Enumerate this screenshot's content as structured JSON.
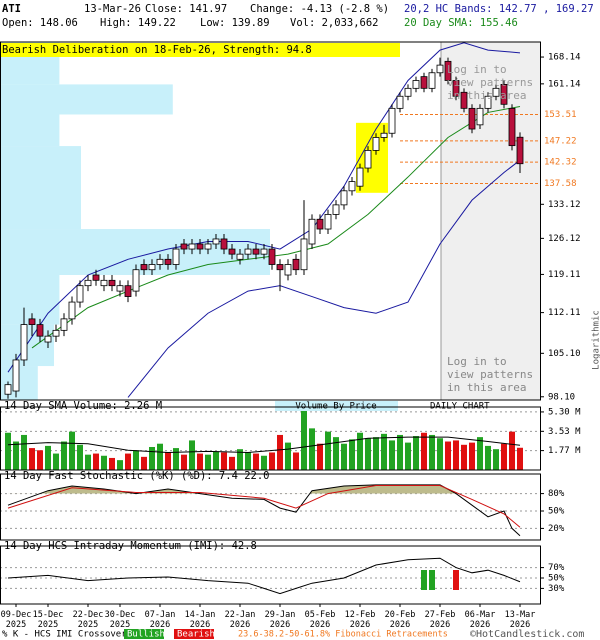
{
  "header": {
    "symbol": "ATI",
    "date": "13-Mar-26",
    "close": "Close: 141.97",
    "change": "Change: -4.13 (-2.8 %)",
    "open": "Open: 148.06",
    "high": "High: 149.22",
    "low": "Low: 139.89",
    "volume": "Vol: 2,033,662",
    "bands": "20,2 HC Bands: 142.77 , 169.27",
    "sma": "20 Day SMA: 155.46",
    "pattern": "Bearish Deliberation on 18-Feb-26, Strength: 94.8",
    "notice": [
      "Log in to",
      "view patterns",
      "in this area"
    ],
    "scale": "Logarithmic",
    "vbp_label": "Volume By Price",
    "chart_kind": "DAILY CHART"
  },
  "footer": {
    "crossover": "% K - HCS IMI Crossover,",
    "bullish": "Bullish",
    "bearish": "Bearish",
    "fib": "23.6-38.2-50-61.8% Fibonacci Retracements",
    "site": "©HotCandlestick.com"
  },
  "chart_data": [
    {
      "type": "candlestick",
      "log_scale": true,
      "ylim": [
        97.6,
        172.2
      ],
      "yticks": [
        {
          "value": 98.1,
          "label": "98.10"
        },
        {
          "value": 105.1,
          "label": "105.10"
        },
        112.11,
        {
          "value": 119.11,
          "label": "119.11"
        },
        126.12,
        {
          "value": 133.12,
          "label": "133.12"
        },
        161.14,
        168.14
      ],
      "fib_levels": [
        153.51,
        147.22,
        142.32,
        137.58
      ],
      "fib_color": "#f07820",
      "up_color": "#ffffff",
      "down_color": "#b8103c",
      "highlight": [
        44,
        47
      ],
      "open": [
        98.5,
        99,
        104,
        111,
        110,
        107,
        108,
        109,
        111,
        114,
        117,
        119,
        117,
        118,
        116,
        117,
        116,
        121,
        120,
        121,
        122,
        121,
        125,
        124,
        125,
        124,
        125,
        126,
        124,
        122,
        123,
        124,
        123,
        124,
        121,
        119,
        122,
        120,
        125,
        130,
        128,
        131,
        133,
        136,
        137,
        141,
        145,
        148,
        149,
        155,
        158,
        160,
        163,
        160,
        164,
        167,
        162,
        159,
        155,
        151,
        155,
        158,
        161,
        155,
        148.06
      ],
      "high": [
        100.5,
        105,
        113,
        112,
        111,
        109,
        110,
        112,
        115,
        118,
        119,
        120,
        119,
        119,
        118,
        118,
        121,
        122,
        122,
        123,
        123,
        125,
        126,
        126,
        126,
        126,
        127,
        127,
        125,
        124,
        125,
        125,
        125,
        125,
        122,
        122,
        123,
        134,
        131,
        131,
        132,
        134,
        137,
        139,
        142,
        146,
        149,
        151,
        156,
        159,
        161,
        163,
        164,
        165,
        168,
        168,
        163,
        160,
        156,
        156,
        159,
        161,
        162,
        156,
        149.22
      ],
      "low": [
        97.8,
        98,
        103,
        108,
        107,
        106,
        107,
        108,
        110,
        113,
        116,
        117,
        116,
        116,
        115,
        114,
        115,
        119,
        119,
        120,
        120,
        120,
        123,
        123,
        123,
        123,
        124,
        123,
        122,
        121,
        122,
        122,
        122,
        120,
        116,
        118,
        119,
        119,
        124,
        127,
        127,
        130,
        132,
        135,
        136,
        140,
        144,
        147,
        148,
        154,
        157,
        159,
        159,
        159,
        163,
        161,
        157,
        154,
        149,
        150,
        154,
        157,
        155,
        145,
        139.89
      ],
      "close": [
        100,
        104,
        110,
        110,
        108,
        108,
        109,
        111,
        114,
        117,
        118,
        118,
        118,
        117,
        117,
        115,
        120,
        120,
        121,
        122,
        121,
        124,
        124,
        125,
        124,
        125,
        126,
        124,
        123,
        123,
        124,
        123,
        124,
        121,
        120,
        121,
        120,
        126,
        130,
        128,
        131,
        133,
        136,
        138,
        141,
        145,
        148,
        149,
        155,
        158,
        160,
        162,
        160,
        164,
        166,
        162,
        158,
        155,
        150,
        155,
        158,
        160,
        156,
        146.1,
        141.97
      ],
      "volume_by_price": {
        "bins": [
          97.6,
          103,
          110,
          119,
          128,
          146,
          153.5,
          161,
          172.2
        ],
        "values": [
          7,
          10,
          11,
          50,
          15,
          11,
          32,
          11
        ],
        "xlim": [
          0,
          100
        ],
        "color": "#c8f0fa"
      },
      "series": [
        {
          "name": "upper",
          "color": "#1a1aa0",
          "x": [
            0,
            5,
            10,
            15,
            20,
            25,
            30,
            34,
            38,
            42,
            46,
            50,
            54,
            57,
            60,
            64
          ],
          "values": [
            102,
            112,
            119,
            122,
            124,
            125.5,
            125.5,
            124,
            128,
            137,
            150,
            162,
            170,
            172,
            170,
            169.27
          ]
        },
        {
          "name": "lower",
          "color": "#1a1aa0",
          "x": [
            15,
            20,
            25,
            30,
            34,
            38,
            42,
            46,
            50,
            54,
            58,
            62,
            64
          ],
          "values": [
            98,
            106,
            112,
            116,
            117,
            115,
            113,
            112,
            114,
            125,
            134,
            140,
            142.77
          ]
        },
        {
          "name": "sma",
          "color": "#1a8a1a",
          "x": [
            3,
            10,
            15,
            20,
            25,
            30,
            35,
            40,
            45,
            50,
            55,
            60,
            64
          ],
          "values": [
            106,
            113,
            116,
            119,
            121,
            122,
            123,
            125,
            131,
            139,
            148,
            154,
            155.46
          ]
        }
      ]
    },
    {
      "type": "bar",
      "title": "14 Day SMA Volume: 2.26 M",
      "ylim": [
        0,
        5.75
      ],
      "yticks": [
        {
          "value": 1.77,
          "label": "1.77 M"
        },
        {
          "value": 3.53,
          "label": "3.53 M"
        },
        {
          "value": 5.3,
          "label": "5.30 M"
        }
      ],
      "up_color": "#22a322",
      "down_color": "#e01010",
      "values": [
        3.4,
        2.6,
        3.2,
        2.0,
        1.8,
        2.2,
        1.5,
        2.6,
        3.5,
        2.3,
        1.4,
        1.5,
        1.3,
        1.1,
        0.9,
        1.5,
        1.8,
        1.2,
        2.1,
        2.4,
        1.6,
        2.0,
        1.4,
        2.7,
        1.5,
        1.4,
        1.7,
        1.6,
        1.2,
        1.9,
        1.6,
        1.5,
        1.3,
        1.6,
        3.2,
        2.5,
        1.6,
        5.7,
        3.8,
        2.4,
        3.5,
        3.0,
        2.4,
        2.8,
        3.4,
        2.9,
        3.0,
        3.3,
        2.7,
        3.2,
        2.5,
        3.1,
        3.4,
        3.2,
        2.9,
        2.6,
        2.7,
        2.3,
        2.5,
        3.0,
        2.2,
        1.9,
        2.4,
        3.5,
        2.03
      ],
      "sma": {
        "x": [
          0,
          5,
          10,
          15,
          20,
          25,
          30,
          35,
          40,
          45,
          50,
          55,
          60,
          64
        ],
        "values": [
          2.3,
          2.5,
          2.4,
          1.8,
          1.6,
          1.7,
          1.6,
          1.9,
          2.4,
          2.9,
          3.0,
          3.0,
          2.6,
          2.26
        ],
        "color": "#000000"
      }
    },
    {
      "type": "line",
      "title": "14 Day Fast Stochastic (%K) (%D): 7.4   22.0",
      "ylim": [
        0,
        100
      ],
      "fill_above": 80,
      "fill_color": "#bdbb8c",
      "yticks": [
        {
          "value": 20,
          "label": "20%"
        },
        {
          "value": 50,
          "label": "50%"
        },
        {
          "value": 80,
          "label": "80%"
        }
      ],
      "series": [
        {
          "name": "%K",
          "color": "#000000",
          "x": [
            0,
            5,
            8,
            12,
            16,
            20,
            24,
            28,
            32,
            34,
            36,
            38,
            42,
            46,
            50,
            54,
            56,
            58,
            60,
            62,
            63,
            64
          ],
          "values": [
            60,
            85,
            93,
            88,
            80,
            88,
            80,
            72,
            70,
            55,
            48,
            85,
            93,
            95,
            95,
            95,
            80,
            60,
            40,
            50,
            20,
            7.4
          ]
        },
        {
          "name": "%D",
          "color": "#d01010",
          "x": [
            0,
            8,
            16,
            24,
            32,
            36,
            40,
            46,
            54,
            58,
            62,
            64
          ],
          "values": [
            55,
            90,
            82,
            82,
            72,
            55,
            80,
            94,
            94,
            70,
            45,
            22.0
          ]
        }
      ]
    },
    {
      "type": "line",
      "title": "14 Day HCS Intraday Momentum (IMI): 42.8",
      "ylim": [
        0,
        100
      ],
      "yticks": [
        {
          "value": 30,
          "label": "30%"
        },
        {
          "value": 50,
          "label": "50%"
        },
        {
          "value": 70,
          "label": "70%"
        }
      ],
      "series": [
        {
          "name": "IMI",
          "color": "#000000",
          "x": [
            0,
            5,
            10,
            15,
            20,
            25,
            30,
            32,
            34,
            36,
            38,
            42,
            46,
            50,
            54,
            56,
            58,
            60,
            62,
            64
          ],
          "values": [
            50,
            55,
            45,
            50,
            52,
            45,
            40,
            30,
            20,
            30,
            40,
            50,
            75,
            85,
            88,
            70,
            60,
            65,
            55,
            42.8
          ]
        }
      ],
      "bullish": [
        52,
        53
      ],
      "bearish": [
        56
      ],
      "bullish_color": "#22a322",
      "bearish_color": "#e01010",
      "xticks": [
        {
          "value": 1,
          "label": "09-Dec 2025"
        },
        {
          "value": 5,
          "label": "15-Dec 2025"
        },
        {
          "value": 10,
          "label": "22-Dec 2025"
        },
        {
          "value": 14,
          "label": "30-Dec 2025"
        },
        {
          "value": 19,
          "label": "07-Jan 2026"
        },
        {
          "value": 24,
          "label": "14-Jan 2026"
        },
        {
          "value": 29,
          "label": "22-Jan 2026"
        },
        {
          "value": 34,
          "label": "29-Jan 2026"
        },
        {
          "value": 39,
          "label": "05-Feb 2026"
        },
        {
          "value": 44,
          "label": "12-Feb 2026"
        },
        {
          "value": 49,
          "label": "20-Feb 2026"
        },
        {
          "value": 54,
          "label": "27-Feb 2026"
        },
        {
          "value": 59,
          "label": "06-Mar 2026"
        },
        {
          "value": 64,
          "label": "13-Mar 2026"
        }
      ]
    }
  ]
}
